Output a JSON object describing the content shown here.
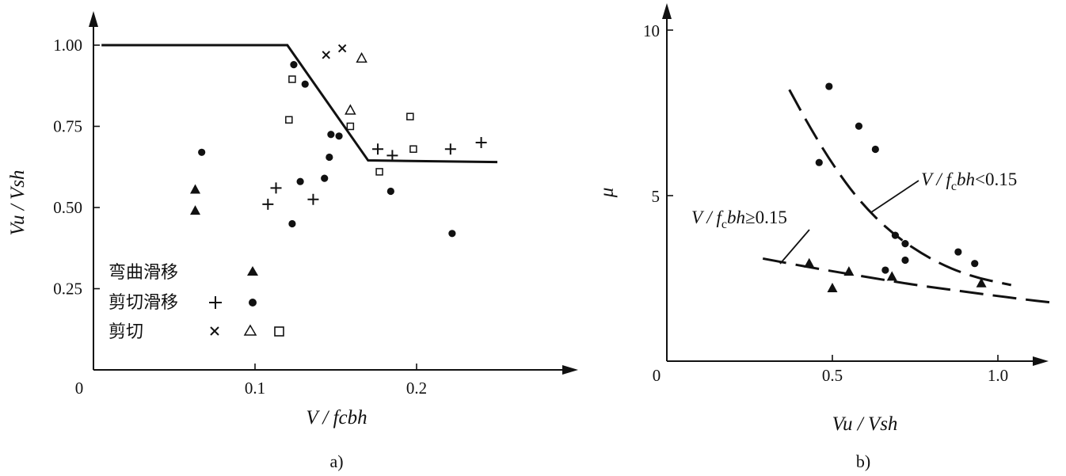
{
  "chart_data": [
    {
      "type": "scatter",
      "caption": "a)",
      "xlabel": "V / fcbh",
      "ylabel": "Vu / Vsh",
      "xlim": [
        0,
        0.3
      ],
      "ylim": [
        0,
        1.0
      ],
      "x_ticks": [
        "0",
        "0.1",
        "0.2"
      ],
      "x_tick_values": [
        0,
        0.1,
        0.2
      ],
      "y_ticks": [
        "0.25",
        "0.50",
        "0.75",
        "1.00"
      ],
      "y_tick_values": [
        0.25,
        0.5,
        0.75,
        1.0
      ],
      "grid": false,
      "legend_position": "bottom-left",
      "legend": [
        {
          "label": "弯曲滑移",
          "markers": [
            "filled-triangle"
          ]
        },
        {
          "label": "剪切滑移",
          "markers": [
            "plus",
            "filled-circle"
          ]
        },
        {
          "label": "剪切",
          "markers": [
            "x",
            "open-triangle",
            "open-square"
          ]
        }
      ],
      "envelope": {
        "x": [
          0.005,
          0.12,
          0.17,
          0.25
        ],
        "y": [
          1.0,
          1.0,
          0.645,
          0.64
        ]
      },
      "series": [
        {
          "marker": "filled-triangle",
          "points": [
            [
              0.063,
              0.555
            ],
            [
              0.063,
              0.49
            ]
          ]
        },
        {
          "marker": "plus",
          "points": [
            [
              0.108,
              0.51
            ],
            [
              0.113,
              0.56
            ],
            [
              0.136,
              0.525
            ],
            [
              0.176,
              0.68
            ],
            [
              0.185,
              0.66
            ],
            [
              0.221,
              0.68
            ],
            [
              0.24,
              0.7
            ]
          ]
        },
        {
          "marker": "filled-circle",
          "points": [
            [
              0.067,
              0.67
            ],
            [
              0.124,
              0.94
            ],
            [
              0.131,
              0.88
            ],
            [
              0.128,
              0.58
            ],
            [
              0.143,
              0.59
            ],
            [
              0.146,
              0.655
            ],
            [
              0.147,
              0.725
            ],
            [
              0.152,
              0.72
            ],
            [
              0.123,
              0.45
            ],
            [
              0.184,
              0.55
            ],
            [
              0.222,
              0.42
            ]
          ]
        },
        {
          "marker": "x",
          "points": [
            [
              0.144,
              0.97
            ],
            [
              0.154,
              0.99
            ]
          ]
        },
        {
          "marker": "open-triangle",
          "points": [
            [
              0.166,
              0.96
            ],
            [
              0.159,
              0.8
            ]
          ]
        },
        {
          "marker": "open-square",
          "points": [
            [
              0.123,
              0.895
            ],
            [
              0.121,
              0.77
            ],
            [
              0.159,
              0.75
            ],
            [
              0.177,
              0.61
            ],
            [
              0.196,
              0.78
            ],
            [
              0.198,
              0.68
            ]
          ]
        }
      ]
    },
    {
      "type": "scatter",
      "caption": "b)",
      "xlabel": "Vu / Vsh",
      "ylabel": "μ",
      "xlim": [
        0,
        1.18
      ],
      "ylim": [
        0,
        11
      ],
      "x_ticks": [
        "0",
        "0.5",
        "1.0"
      ],
      "x_tick_values": [
        0,
        0.5,
        1.0
      ],
      "y_ticks": [
        "5",
        "10"
      ],
      "y_tick_values": [
        5,
        10
      ],
      "grid": false,
      "curve_labels": [
        {
          "text": "V / fcbh < 0.15",
          "curve": "upper"
        },
        {
          "text": "V / fcbh ≥ 0.15",
          "curve": "lower"
        }
      ],
      "curves": [
        {
          "name": "upper",
          "style": "dashed",
          "x": [
            0.37,
            0.43,
            0.5,
            0.58,
            0.68,
            0.8,
            0.92,
            1.04
          ],
          "y": [
            8.2,
            7.1,
            5.95,
            4.85,
            3.85,
            3.05,
            2.55,
            2.3
          ]
        },
        {
          "name": "lower",
          "style": "dashed",
          "x": [
            0.29,
            0.45,
            0.6,
            0.75,
            0.9,
            1.05,
            1.18
          ],
          "y": [
            3.1,
            2.8,
            2.55,
            2.3,
            2.1,
            1.9,
            1.75
          ]
        }
      ],
      "series": [
        {
          "marker": "filled-circle",
          "points": [
            [
              0.49,
              8.3
            ],
            [
              0.46,
              6.0
            ],
            [
              0.58,
              7.1
            ],
            [
              0.63,
              6.4
            ],
            [
              0.69,
              3.8
            ],
            [
              0.72,
              3.55
            ],
            [
              0.72,
              3.05
            ],
            [
              0.66,
              2.75
            ],
            [
              0.88,
              3.3
            ],
            [
              0.93,
              2.95
            ]
          ]
        },
        {
          "marker": "filled-triangle",
          "points": [
            [
              0.43,
              2.95
            ],
            [
              0.55,
              2.7
            ],
            [
              0.5,
              2.2
            ],
            [
              0.68,
              2.55
            ],
            [
              0.95,
              2.35
            ]
          ]
        }
      ]
    }
  ]
}
